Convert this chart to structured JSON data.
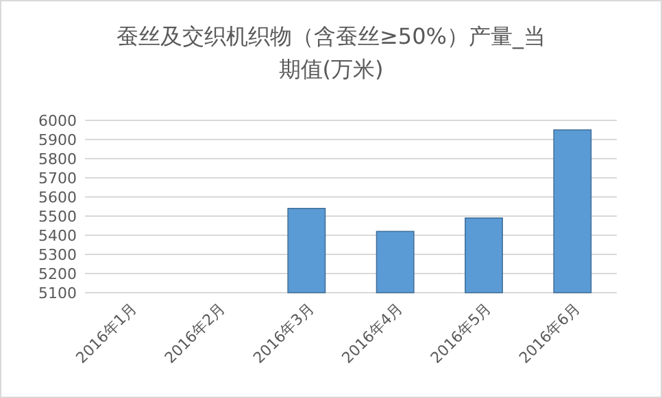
{
  "chart_data": {
    "type": "bar",
    "title": "蚕丝及交织机织物（含蚕丝≥50%）产量_当期值(万米)",
    "categories": [
      "2016年1月",
      "2016年2月",
      "2016年3月",
      "2016年4月",
      "2016年5月",
      "2016年6月"
    ],
    "values": [
      null,
      null,
      5540,
      5420,
      5490,
      5950
    ],
    "color": "#5b9bd5",
    "ylim": [
      5100,
      6000
    ],
    "yticks": [
      5100,
      5200,
      5300,
      5400,
      5500,
      5600,
      5700,
      5800,
      5900,
      6000
    ],
    "grid": "y"
  }
}
